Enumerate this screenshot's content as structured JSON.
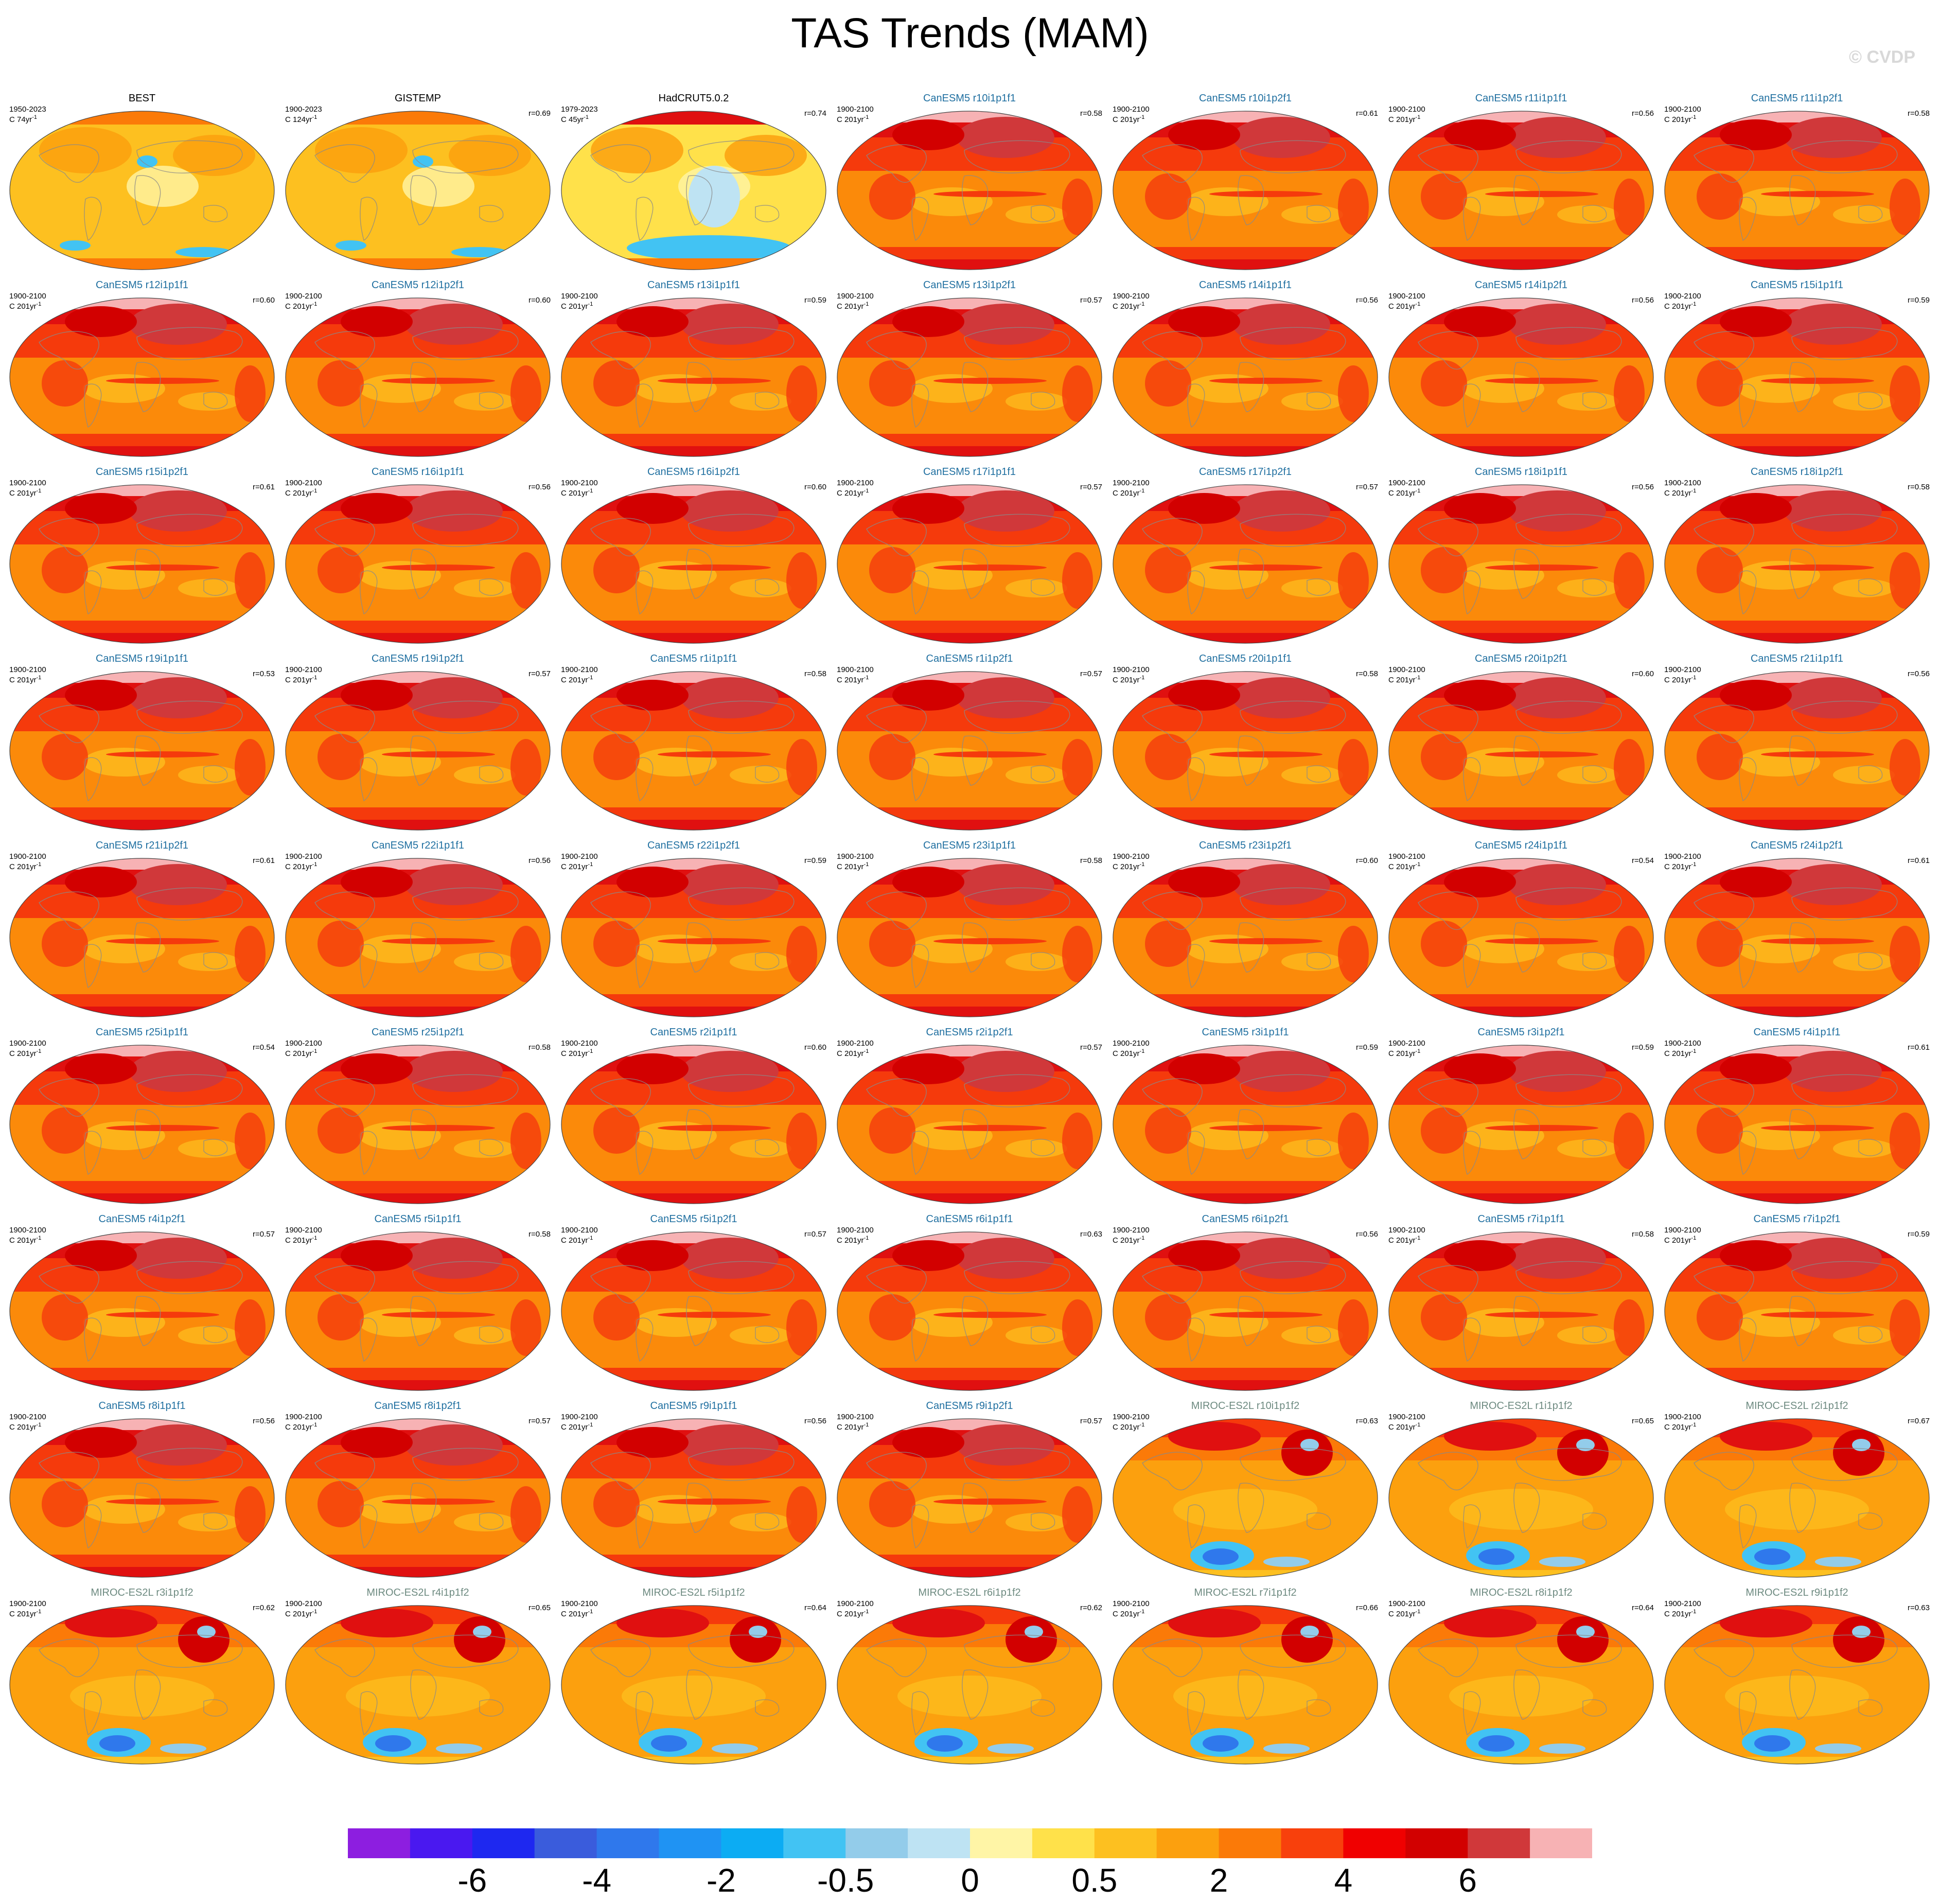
{
  "title": "TAS Trends (MAM)",
  "copyright": "© CVDP",
  "legend": {
    "colors": [
      "#8d1ee0",
      "#4a18f0",
      "#1e28f0",
      "#3a5cdc",
      "#2f78ec",
      "#1f93f3",
      "#0cacf3",
      "#42c3f3",
      "#93ccea",
      "#bee3f3",
      "#fff5a6",
      "#ffe14a",
      "#fdc020",
      "#fca00e",
      "#fb7a08",
      "#f8400c",
      "#f00000",
      "#d20000",
      "#d0383a",
      "#f7b2b4"
    ],
    "labels": [
      "-6",
      "-4",
      "-2",
      "-0.5",
      "0",
      "0.5",
      "2",
      "4",
      "6"
    ]
  },
  "panels": [
    {
      "title": "BEST",
      "years": "1950-2023",
      "unit": "C 74yr",
      "corr": "",
      "group": "obs"
    },
    {
      "title": "GISTEMP",
      "years": "1900-2023",
      "unit": "C 124yr",
      "corr": "r=0.69",
      "group": "obs"
    },
    {
      "title": "HadCRUT5.0.2",
      "years": "1979-2023",
      "unit": "C 45yr",
      "corr": "r=0.74",
      "group": "obs"
    },
    {
      "title": "CanESM5 r10i1p1f1",
      "years": "1900-2100",
      "unit": "C 201yr",
      "corr": "r=0.58",
      "group": "canesm"
    },
    {
      "title": "CanESM5 r10i1p2f1",
      "years": "1900-2100",
      "unit": "C 201yr",
      "corr": "r=0.61",
      "group": "canesm"
    },
    {
      "title": "CanESM5 r11i1p1f1",
      "years": "1900-2100",
      "unit": "C 201yr",
      "corr": "r=0.56",
      "group": "canesm"
    },
    {
      "title": "CanESM5 r11i1p2f1",
      "years": "1900-2100",
      "unit": "C 201yr",
      "corr": "r=0.58",
      "group": "canesm"
    },
    {
      "title": "CanESM5 r12i1p1f1",
      "years": "1900-2100",
      "unit": "C 201yr",
      "corr": "r=0.60",
      "group": "canesm"
    },
    {
      "title": "CanESM5 r12i1p2f1",
      "years": "1900-2100",
      "unit": "C 201yr",
      "corr": "r=0.60",
      "group": "canesm"
    },
    {
      "title": "CanESM5 r13i1p1f1",
      "years": "1900-2100",
      "unit": "C 201yr",
      "corr": "r=0.59",
      "group": "canesm"
    },
    {
      "title": "CanESM5 r13i1p2f1",
      "years": "1900-2100",
      "unit": "C 201yr",
      "corr": "r=0.57",
      "group": "canesm"
    },
    {
      "title": "CanESM5 r14i1p1f1",
      "years": "1900-2100",
      "unit": "C 201yr",
      "corr": "r=0.56",
      "group": "canesm"
    },
    {
      "title": "CanESM5 r14i1p2f1",
      "years": "1900-2100",
      "unit": "C 201yr",
      "corr": "r=0.56",
      "group": "canesm"
    },
    {
      "title": "CanESM5 r15i1p1f1",
      "years": "1900-2100",
      "unit": "C 201yr",
      "corr": "r=0.59",
      "group": "canesm"
    },
    {
      "title": "CanESM5 r15i1p2f1",
      "years": "1900-2100",
      "unit": "C 201yr",
      "corr": "r=0.61",
      "group": "canesm"
    },
    {
      "title": "CanESM5 r16i1p1f1",
      "years": "1900-2100",
      "unit": "C 201yr",
      "corr": "r=0.56",
      "group": "canesm"
    },
    {
      "title": "CanESM5 r16i1p2f1",
      "years": "1900-2100",
      "unit": "C 201yr",
      "corr": "r=0.60",
      "group": "canesm"
    },
    {
      "title": "CanESM5 r17i1p1f1",
      "years": "1900-2100",
      "unit": "C 201yr",
      "corr": "r=0.57",
      "group": "canesm"
    },
    {
      "title": "CanESM5 r17i1p2f1",
      "years": "1900-2100",
      "unit": "C 201yr",
      "corr": "r=0.57",
      "group": "canesm"
    },
    {
      "title": "CanESM5 r18i1p1f1",
      "years": "1900-2100",
      "unit": "C 201yr",
      "corr": "r=0.56",
      "group": "canesm"
    },
    {
      "title": "CanESM5 r18i1p2f1",
      "years": "1900-2100",
      "unit": "C 201yr",
      "corr": "r=0.58",
      "group": "canesm"
    },
    {
      "title": "CanESM5 r19i1p1f1",
      "years": "1900-2100",
      "unit": "C 201yr",
      "corr": "r=0.53",
      "group": "canesm"
    },
    {
      "title": "CanESM5 r19i1p2f1",
      "years": "1900-2100",
      "unit": "C 201yr",
      "corr": "r=0.57",
      "group": "canesm"
    },
    {
      "title": "CanESM5 r1i1p1f1",
      "years": "1900-2100",
      "unit": "C 201yr",
      "corr": "r=0.58",
      "group": "canesm"
    },
    {
      "title": "CanESM5 r1i1p2f1",
      "years": "1900-2100",
      "unit": "C 201yr",
      "corr": "r=0.57",
      "group": "canesm"
    },
    {
      "title": "CanESM5 r20i1p1f1",
      "years": "1900-2100",
      "unit": "C 201yr",
      "corr": "r=0.58",
      "group": "canesm"
    },
    {
      "title": "CanESM5 r20i1p2f1",
      "years": "1900-2100",
      "unit": "C 201yr",
      "corr": "r=0.60",
      "group": "canesm"
    },
    {
      "title": "CanESM5 r21i1p1f1",
      "years": "1900-2100",
      "unit": "C 201yr",
      "corr": "r=0.56",
      "group": "canesm"
    },
    {
      "title": "CanESM5 r21i1p2f1",
      "years": "1900-2100",
      "unit": "C 201yr",
      "corr": "r=0.61",
      "group": "canesm"
    },
    {
      "title": "CanESM5 r22i1p1f1",
      "years": "1900-2100",
      "unit": "C 201yr",
      "corr": "r=0.56",
      "group": "canesm"
    },
    {
      "title": "CanESM5 r22i1p2f1",
      "years": "1900-2100",
      "unit": "C 201yr",
      "corr": "r=0.59",
      "group": "canesm"
    },
    {
      "title": "CanESM5 r23i1p1f1",
      "years": "1900-2100",
      "unit": "C 201yr",
      "corr": "r=0.58",
      "group": "canesm"
    },
    {
      "title": "CanESM5 r23i1p2f1",
      "years": "1900-2100",
      "unit": "C 201yr",
      "corr": "r=0.60",
      "group": "canesm"
    },
    {
      "title": "CanESM5 r24i1p1f1",
      "years": "1900-2100",
      "unit": "C 201yr",
      "corr": "r=0.54",
      "group": "canesm"
    },
    {
      "title": "CanESM5 r24i1p2f1",
      "years": "1900-2100",
      "unit": "C 201yr",
      "corr": "r=0.61",
      "group": "canesm"
    },
    {
      "title": "CanESM5 r25i1p1f1",
      "years": "1900-2100",
      "unit": "C 201yr",
      "corr": "r=0.54",
      "group": "canesm"
    },
    {
      "title": "CanESM5 r25i1p2f1",
      "years": "1900-2100",
      "unit": "C 201yr",
      "corr": "r=0.58",
      "group": "canesm"
    },
    {
      "title": "CanESM5 r2i1p1f1",
      "years": "1900-2100",
      "unit": "C 201yr",
      "corr": "r=0.60",
      "group": "canesm"
    },
    {
      "title": "CanESM5 r2i1p2f1",
      "years": "1900-2100",
      "unit": "C 201yr",
      "corr": "r=0.57",
      "group": "canesm"
    },
    {
      "title": "CanESM5 r3i1p1f1",
      "years": "1900-2100",
      "unit": "C 201yr",
      "corr": "r=0.59",
      "group": "canesm"
    },
    {
      "title": "CanESM5 r3i1p2f1",
      "years": "1900-2100",
      "unit": "C 201yr",
      "corr": "r=0.59",
      "group": "canesm"
    },
    {
      "title": "CanESM5 r4i1p1f1",
      "years": "1900-2100",
      "unit": "C 201yr",
      "corr": "r=0.61",
      "group": "canesm"
    },
    {
      "title": "CanESM5 r4i1p2f1",
      "years": "1900-2100",
      "unit": "C 201yr",
      "corr": "r=0.57",
      "group": "canesm"
    },
    {
      "title": "CanESM5 r5i1p1f1",
      "years": "1900-2100",
      "unit": "C 201yr",
      "corr": "r=0.58",
      "group": "canesm"
    },
    {
      "title": "CanESM5 r5i1p2f1",
      "years": "1900-2100",
      "unit": "C 201yr",
      "corr": "r=0.57",
      "group": "canesm"
    },
    {
      "title": "CanESM5 r6i1p1f1",
      "years": "1900-2100",
      "unit": "C 201yr",
      "corr": "r=0.63",
      "group": "canesm"
    },
    {
      "title": "CanESM5 r6i1p2f1",
      "years": "1900-2100",
      "unit": "C 201yr",
      "corr": "r=0.56",
      "group": "canesm"
    },
    {
      "title": "CanESM5 r7i1p1f1",
      "years": "1900-2100",
      "unit": "C 201yr",
      "corr": "r=0.58",
      "group": "canesm"
    },
    {
      "title": "CanESM5 r7i1p2f1",
      "years": "1900-2100",
      "unit": "C 201yr",
      "corr": "r=0.59",
      "group": "canesm"
    },
    {
      "title": "CanESM5 r8i1p1f1",
      "years": "1900-2100",
      "unit": "C 201yr",
      "corr": "r=0.56",
      "group": "canesm"
    },
    {
      "title": "CanESM5 r8i1p2f1",
      "years": "1900-2100",
      "unit": "C 201yr",
      "corr": "r=0.57",
      "group": "canesm"
    },
    {
      "title": "CanESM5 r9i1p1f1",
      "years": "1900-2100",
      "unit": "C 201yr",
      "corr": "r=0.56",
      "group": "canesm"
    },
    {
      "title": "CanESM5 r9i1p2f1",
      "years": "1900-2100",
      "unit": "C 201yr",
      "corr": "r=0.57",
      "group": "canesm"
    },
    {
      "title": "MIROC-ES2L r10i1p1f2",
      "years": "1900-2100",
      "unit": "C 201yr",
      "corr": "r=0.63",
      "group": "miroc"
    },
    {
      "title": "MIROC-ES2L r1i1p1f2",
      "years": "1900-2100",
      "unit": "C 201yr",
      "corr": "r=0.65",
      "group": "miroc"
    },
    {
      "title": "MIROC-ES2L r2i1p1f2",
      "years": "1900-2100",
      "unit": "C 201yr",
      "corr": "r=0.67",
      "group": "miroc"
    },
    {
      "title": "MIROC-ES2L r3i1p1f2",
      "years": "1900-2100",
      "unit": "C 201yr",
      "corr": "r=0.62",
      "group": "miroc"
    },
    {
      "title": "MIROC-ES2L r4i1p1f2",
      "years": "1900-2100",
      "unit": "C 201yr",
      "corr": "r=0.65",
      "group": "miroc"
    },
    {
      "title": "MIROC-ES2L r5i1p1f2",
      "years": "1900-2100",
      "unit": "C 201yr",
      "corr": "r=0.64",
      "group": "miroc"
    },
    {
      "title": "MIROC-ES2L r6i1p1f2",
      "years": "1900-2100",
      "unit": "C 201yr",
      "corr": "r=0.62",
      "group": "miroc"
    },
    {
      "title": "MIROC-ES2L r7i1p1f2",
      "years": "1900-2100",
      "unit": "C 201yr",
      "corr": "r=0.66",
      "group": "miroc"
    },
    {
      "title": "MIROC-ES2L r8i1p1f2",
      "years": "1900-2100",
      "unit": "C 201yr",
      "corr": "r=0.64",
      "group": "miroc"
    },
    {
      "title": "MIROC-ES2L r9i1p1f2",
      "years": "1900-2100",
      "unit": "C 201yr",
      "corr": "r=0.63",
      "group": "miroc"
    }
  ]
}
